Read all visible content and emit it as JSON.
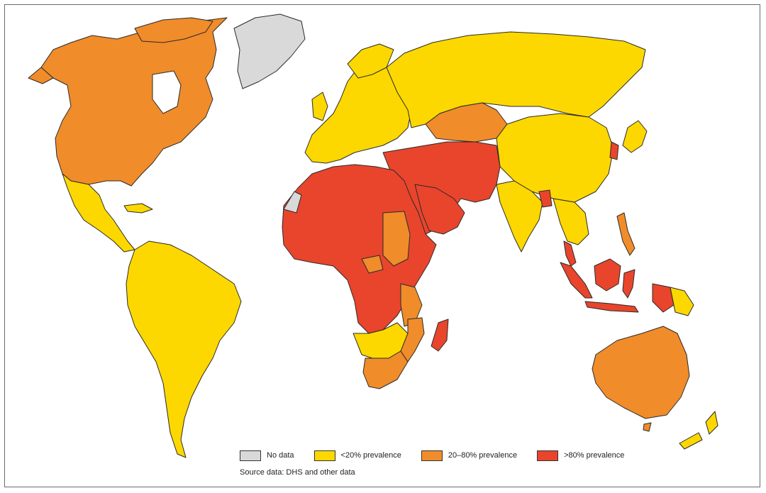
{
  "colors": {
    "no_data": "#d9d9d9",
    "low": "#fcd800",
    "mid": "#f08c2a",
    "high": "#e8452c",
    "border": "#2a2a2a"
  },
  "legend": [
    {
      "label": "No data",
      "color": "#d9d9d9"
    },
    {
      "label": "<20% prevalence",
      "color": "#fcd800"
    },
    {
      "label": "20–80% prevalence",
      "color": "#f08c2a"
    },
    {
      "label": ">80% prevalence",
      "color": "#e8452c"
    }
  ],
  "source": "Source data: DHS and other data"
}
